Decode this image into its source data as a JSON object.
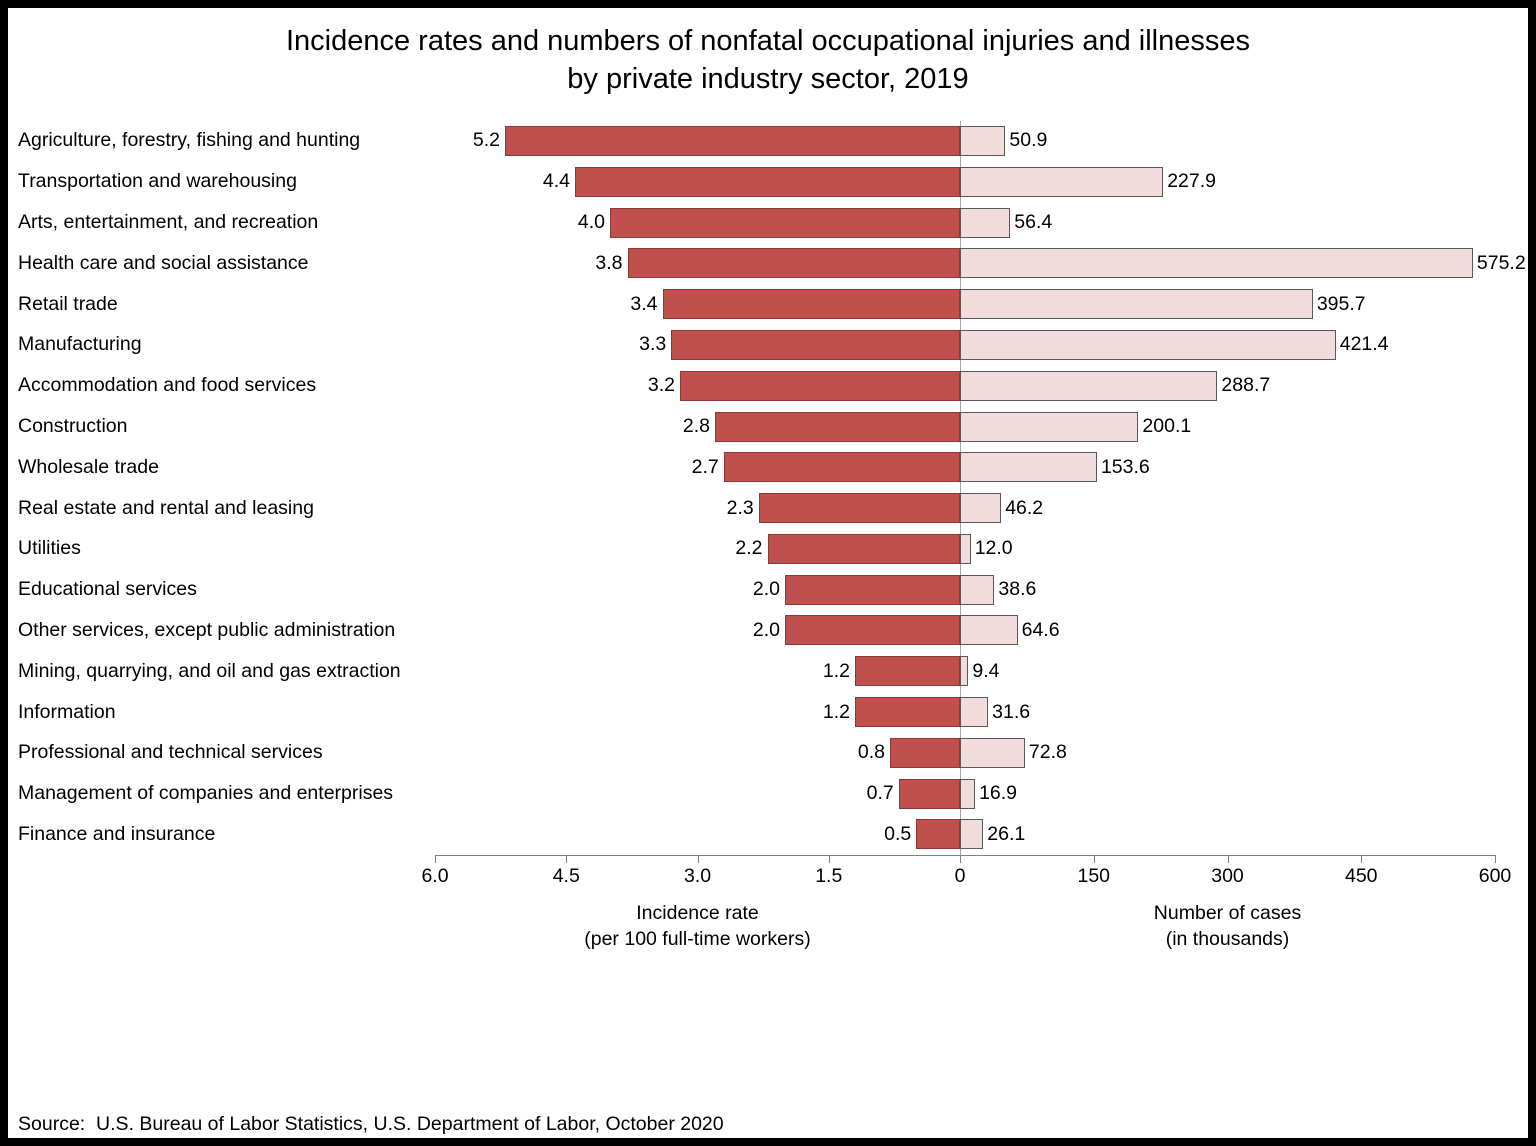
{
  "title_line1": "Incidence rates and numbers of nonfatal occupational injuries and illnesses",
  "title_line2": "by private industry sector, 2019",
  "source": "Source:  U.S. Bureau of Labor Statistics, U.S. Department of Labor, October 2020",
  "chart_data": {
    "type": "bar",
    "orientation": "horizontal-diverging",
    "title": "Incidence rates and numbers of nonfatal occupational injuries and illnesses by private industry sector, 2019",
    "categories": [
      "Agriculture, forestry, fishing and hunting",
      "Transportation and warehousing",
      "Arts, entertainment, and recreation",
      "Health care and social assistance",
      "Retail trade",
      "Manufacturing",
      "Accommodation and food services",
      "Construction",
      "Wholesale trade",
      "Real estate and rental and leasing",
      "Utilities",
      "Educational services",
      "Other services, except public administration",
      "Mining, quarrying, and oil and gas extraction",
      "Information",
      "Professional and technical services",
      "Management of companies and enterprises",
      "Finance and insurance"
    ],
    "series": [
      {
        "name": "Incidence rate",
        "side": "left",
        "values": [
          5.2,
          4.4,
          4.0,
          3.8,
          3.4,
          3.3,
          3.2,
          2.8,
          2.7,
          2.3,
          2.2,
          2.0,
          2.0,
          1.2,
          1.2,
          0.8,
          0.7,
          0.5
        ],
        "axis_max": 6.0,
        "ticks": [
          "6.0",
          "4.5",
          "3.0",
          "1.5",
          "0"
        ],
        "label_line1": "Incidence rate",
        "label_line2": "(per 100 full-time workers)",
        "color": "#c0504d"
      },
      {
        "name": "Number of cases",
        "side": "right",
        "values": [
          50.9,
          227.9,
          56.4,
          575.2,
          395.7,
          421.4,
          288.7,
          200.1,
          153.6,
          46.2,
          12.0,
          38.6,
          64.6,
          9.4,
          31.6,
          72.8,
          16.9,
          26.1
        ],
        "axis_max": 600,
        "ticks": [
          "150",
          "300",
          "450",
          "600"
        ],
        "label_line1": "Number of cases",
        "label_line2": "(in thousands)",
        "color": "#f2dcdb"
      }
    ],
    "grid": false,
    "legend": false
  }
}
